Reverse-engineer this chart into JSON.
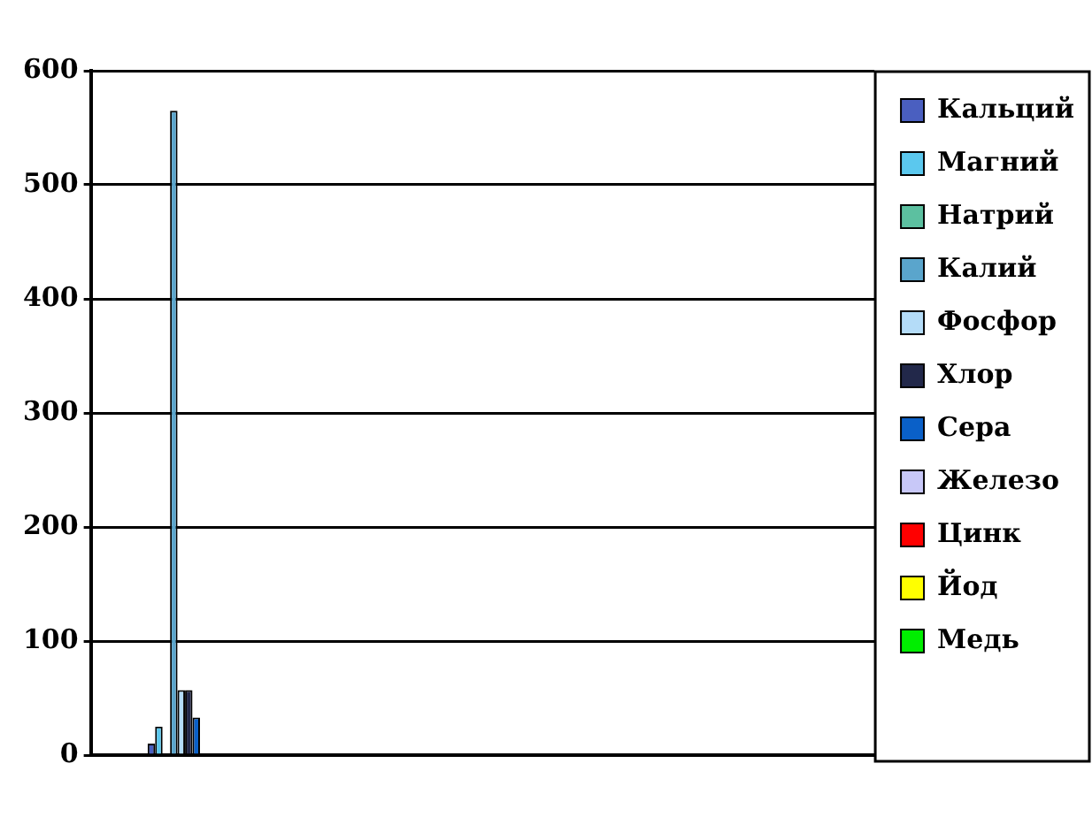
{
  "chart_data": {
    "type": "bar",
    "categories": [
      null,
      null,
      null,
      null
    ],
    "series": [
      {
        "name": "Кальций",
        "color": "#4a5fc0",
        "values": [
          10,
          0,
          0,
          0
        ]
      },
      {
        "name": "Магний",
        "color": "#5bc8ee",
        "values": [
          25,
          0,
          0,
          0
        ]
      },
      {
        "name": "Натрий",
        "color": "#5cc0a0",
        "values": [
          1,
          0,
          0,
          0
        ]
      },
      {
        "name": "Калий",
        "color": "#5aa5cc",
        "values": [
          565,
          0,
          0,
          0
        ]
      },
      {
        "name": "Фосфор",
        "color": "#b4dcf8",
        "values": [
          57,
          0,
          0,
          0
        ]
      },
      {
        "name": "Хлор",
        "color": "#22284a",
        "values": [
          57,
          0,
          0,
          0
        ]
      },
      {
        "name": "Сера",
        "color": "#0a60c8",
        "values": [
          33,
          0,
          0,
          0
        ]
      },
      {
        "name": "Железо",
        "color": "#c8c8f8",
        "values": [
          0,
          0,
          0,
          0
        ]
      },
      {
        "name": "Цинк",
        "color": "#ff0000",
        "values": [
          0,
          0,
          0,
          0
        ]
      },
      {
        "name": "Йод",
        "color": "#ffff00",
        "values": [
          0,
          0,
          0,
          0
        ]
      },
      {
        "name": "Медь",
        "color": "#00ee00",
        "values": [
          0,
          0,
          0,
          0
        ]
      }
    ],
    "ylim": [
      0,
      600
    ],
    "yticks": [
      0,
      100,
      200,
      300,
      400,
      500,
      600
    ],
    "grid": "y",
    "legend": "right"
  }
}
